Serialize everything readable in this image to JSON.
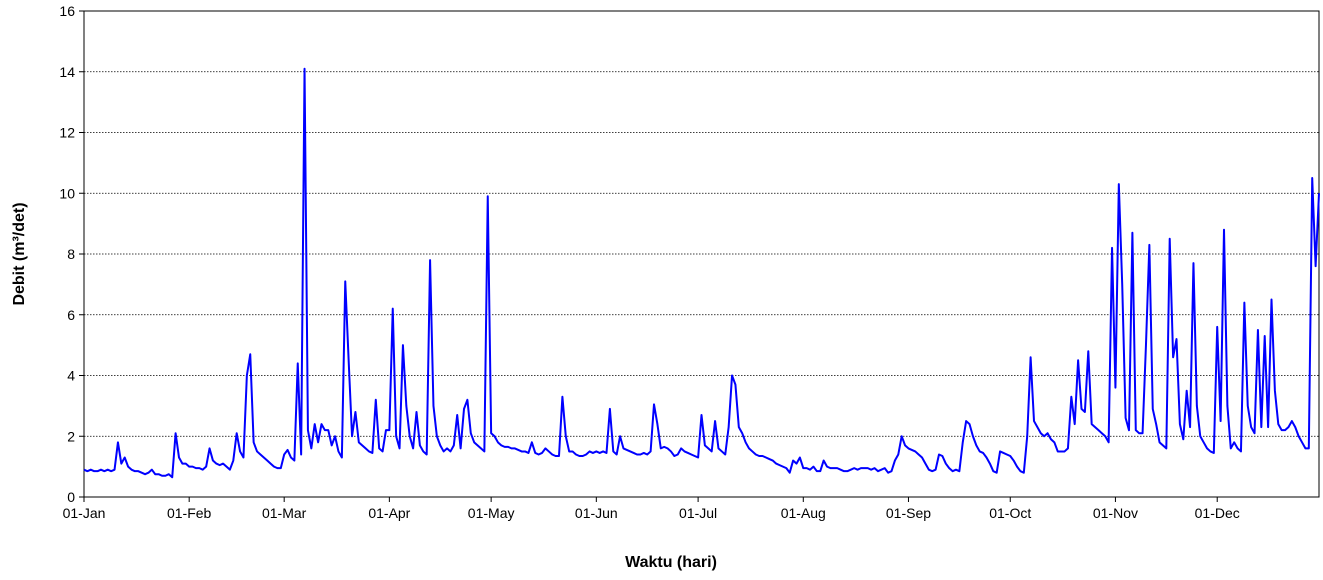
{
  "chart_data": {
    "type": "line",
    "xlabel": "Waktu (hari)",
    "ylabel": "Debit (m³/det)",
    "color": "#0000ff",
    "grid": true,
    "xlim": [
      0,
      364
    ],
    "ylim": [
      0,
      16
    ],
    "yticks": [
      0,
      2,
      4,
      6,
      8,
      10,
      12,
      14,
      16
    ],
    "xticks": [
      {
        "value": 0,
        "label": "01-Jan"
      },
      {
        "value": 31,
        "label": "01-Feb"
      },
      {
        "value": 59,
        "label": "01-Mar"
      },
      {
        "value": 90,
        "label": "01-Apr"
      },
      {
        "value": 120,
        "label": "01-May"
      },
      {
        "value": 151,
        "label": "01-Jun"
      },
      {
        "value": 181,
        "label": "01-Jul"
      },
      {
        "value": 212,
        "label": "01-Aug"
      },
      {
        "value": 243,
        "label": "01-Sep"
      },
      {
        "value": 273,
        "label": "01-Oct"
      },
      {
        "value": 304,
        "label": "01-Nov"
      },
      {
        "value": 334,
        "label": "01-Dec"
      }
    ],
    "x": [
      0,
      1,
      2,
      3,
      4,
      5,
      6,
      7,
      8,
      9,
      10,
      11,
      12,
      13,
      14,
      15,
      16,
      17,
      18,
      19,
      20,
      21,
      22,
      23,
      24,
      25,
      26,
      27,
      28,
      29,
      30,
      31,
      32,
      33,
      34,
      35,
      36,
      37,
      38,
      39,
      40,
      41,
      42,
      43,
      44,
      45,
      46,
      47,
      48,
      49,
      50,
      51,
      52,
      53,
      54,
      55,
      56,
      57,
      58,
      59,
      60,
      61,
      62,
      63,
      64,
      65,
      66,
      67,
      68,
      69,
      70,
      71,
      72,
      73,
      74,
      75,
      76,
      77,
      78,
      79,
      80,
      81,
      82,
      83,
      84,
      85,
      86,
      87,
      88,
      89,
      90,
      91,
      92,
      93,
      94,
      95,
      96,
      97,
      98,
      99,
      100,
      101,
      102,
      103,
      104,
      105,
      106,
      107,
      108,
      109,
      110,
      111,
      112,
      113,
      114,
      115,
      116,
      117,
      118,
      119,
      120,
      121,
      122,
      123,
      124,
      125,
      126,
      127,
      128,
      129,
      130,
      131,
      132,
      133,
      134,
      135,
      136,
      137,
      138,
      139,
      140,
      141,
      142,
      143,
      144,
      145,
      146,
      147,
      148,
      149,
      150,
      151,
      152,
      153,
      154,
      155,
      156,
      157,
      158,
      159,
      160,
      161,
      162,
      163,
      164,
      165,
      166,
      167,
      168,
      169,
      170,
      171,
      172,
      173,
      174,
      175,
      176,
      177,
      178,
      179,
      180,
      181,
      182,
      183,
      184,
      185,
      186,
      187,
      188,
      189,
      190,
      191,
      192,
      193,
      194,
      195,
      196,
      197,
      198,
      199,
      200,
      201,
      202,
      203,
      204,
      205,
      206,
      207,
      208,
      209,
      210,
      211,
      212,
      213,
      214,
      215,
      216,
      217,
      218,
      219,
      220,
      221,
      222,
      223,
      224,
      225,
      226,
      227,
      228,
      229,
      230,
      231,
      232,
      233,
      234,
      235,
      236,
      237,
      238,
      239,
      240,
      241,
      242,
      243,
      244,
      245,
      246,
      247,
      248,
      249,
      250,
      251,
      252,
      253,
      254,
      255,
      256,
      257,
      258,
      259,
      260,
      261,
      262,
      263,
      264,
      265,
      266,
      267,
      268,
      269,
      270,
      271,
      272,
      273,
      274,
      275,
      276,
      277,
      278,
      279,
      280,
      281,
      282,
      283,
      284,
      285,
      286,
      287,
      288,
      289,
      290,
      291,
      292,
      293,
      294,
      295,
      296,
      297,
      298,
      299,
      300,
      301,
      302,
      303,
      304,
      305,
      306,
      307,
      308,
      309,
      310,
      311,
      312,
      313,
      314,
      315,
      316,
      317,
      318,
      319,
      320,
      321,
      322,
      323,
      324,
      325,
      326,
      327,
      328,
      329,
      330,
      331,
      332,
      333,
      334,
      335,
      336,
      337,
      338,
      339,
      340,
      341,
      342,
      343,
      344,
      345,
      346,
      347,
      348,
      349,
      350,
      351,
      352,
      353,
      354,
      355,
      356,
      357,
      358,
      359,
      360,
      361,
      362,
      363,
      364
    ],
    "values": [
      0.9,
      0.85,
      0.9,
      0.85,
      0.85,
      0.9,
      0.85,
      0.9,
      0.85,
      0.9,
      1.8,
      1.1,
      1.3,
      1.0,
      0.9,
      0.85,
      0.85,
      0.8,
      0.75,
      0.8,
      0.9,
      0.75,
      0.75,
      0.7,
      0.7,
      0.75,
      0.65,
      2.1,
      1.3,
      1.1,
      1.1,
      1.0,
      1.0,
      0.95,
      0.95,
      0.9,
      1.0,
      1.6,
      1.2,
      1.1,
      1.05,
      1.1,
      1.0,
      0.9,
      1.2,
      2.1,
      1.5,
      1.3,
      4.0,
      4.7,
      1.8,
      1.5,
      1.4,
      1.3,
      1.2,
      1.1,
      1.0,
      0.95,
      0.95,
      1.4,
      1.55,
      1.3,
      1.2,
      4.4,
      1.4,
      14.1,
      2.2,
      1.6,
      2.4,
      1.8,
      2.4,
      2.2,
      2.2,
      1.7,
      2.0,
      1.5,
      1.3,
      7.1,
      4.5,
      2.0,
      2.8,
      1.8,
      1.7,
      1.6,
      1.5,
      1.45,
      3.2,
      1.6,
      1.5,
      2.2,
      2.2,
      6.2,
      2.0,
      1.6,
      5.0,
      3.0,
      2.0,
      1.6,
      2.8,
      1.7,
      1.5,
      1.4,
      7.8,
      3.0,
      2.0,
      1.7,
      1.5,
      1.6,
      1.5,
      1.7,
      2.7,
      1.6,
      2.9,
      3.2,
      2.1,
      1.8,
      1.7,
      1.6,
      1.5,
      9.9,
      2.1,
      2.0,
      1.8,
      1.7,
      1.65,
      1.65,
      1.6,
      1.6,
      1.55,
      1.5,
      1.5,
      1.45,
      1.8,
      1.45,
      1.4,
      1.45,
      1.6,
      1.5,
      1.4,
      1.35,
      1.35,
      3.3,
      2.0,
      1.5,
      1.5,
      1.4,
      1.35,
      1.35,
      1.4,
      1.5,
      1.45,
      1.5,
      1.45,
      1.5,
      1.45,
      2.9,
      1.5,
      1.4,
      2.0,
      1.6,
      1.55,
      1.5,
      1.45,
      1.4,
      1.4,
      1.45,
      1.4,
      1.5,
      3.05,
      2.4,
      1.6,
      1.65,
      1.6,
      1.5,
      1.35,
      1.4,
      1.6,
      1.5,
      1.45,
      1.4,
      1.35,
      1.3,
      2.7,
      1.7,
      1.6,
      1.5,
      2.5,
      1.6,
      1.5,
      1.4,
      2.3,
      4.0,
      3.7,
      2.3,
      2.1,
      1.8,
      1.6,
      1.5,
      1.4,
      1.35,
      1.35,
      1.3,
      1.25,
      1.2,
      1.1,
      1.05,
      1.0,
      0.95,
      0.8,
      1.2,
      1.1,
      1.3,
      0.95,
      0.95,
      0.9,
      1.0,
      0.85,
      0.85,
      1.2,
      1.0,
      0.95,
      0.95,
      0.95,
      0.9,
      0.85,
      0.85,
      0.9,
      0.95,
      0.9,
      0.95,
      0.95,
      0.95,
      0.9,
      0.95,
      0.85,
      0.9,
      0.95,
      0.8,
      0.85,
      1.2,
      1.4,
      2.0,
      1.7,
      1.6,
      1.55,
      1.5,
      1.4,
      1.3,
      1.1,
      0.9,
      0.85,
      0.9,
      1.4,
      1.35,
      1.1,
      0.95,
      0.85,
      0.9,
      0.85,
      1.8,
      2.5,
      2.4,
      2.0,
      1.7,
      1.5,
      1.45,
      1.3,
      1.1,
      0.85,
      0.8,
      1.5,
      1.45,
      1.4,
      1.35,
      1.2,
      1.0,
      0.85,
      0.8,
      2.0,
      4.6,
      2.5,
      2.3,
      2.1,
      2.0,
      2.1,
      1.9,
      1.8,
      1.5,
      1.5,
      1.5,
      1.6,
      3.3,
      2.4,
      4.5,
      2.9,
      2.8,
      4.8,
      2.4,
      2.3,
      2.2,
      2.1,
      2.0,
      1.8,
      8.2,
      3.6,
      10.3,
      7.0,
      2.6,
      2.2,
      8.7,
      2.2,
      2.1,
      2.1,
      5.0,
      8.3,
      2.9,
      2.4,
      1.8,
      1.7,
      1.6,
      8.5,
      4.6,
      5.2,
      2.4,
      1.9,
      3.5,
      2.3,
      7.7,
      3.0,
      2.0,
      1.8,
      1.6,
      1.5,
      1.45,
      5.6,
      2.5,
      8.8,
      3.0,
      1.6,
      1.8,
      1.6,
      1.5,
      6.4,
      3.0,
      2.3,
      2.1,
      5.5,
      2.3,
      5.3,
      2.3,
      6.5,
      3.5,
      2.4,
      2.2,
      2.2,
      2.3,
      2.5,
      2.3,
      2.0,
      1.8,
      1.6,
      1.6,
      10.5,
      7.6,
      10.0
    ]
  }
}
